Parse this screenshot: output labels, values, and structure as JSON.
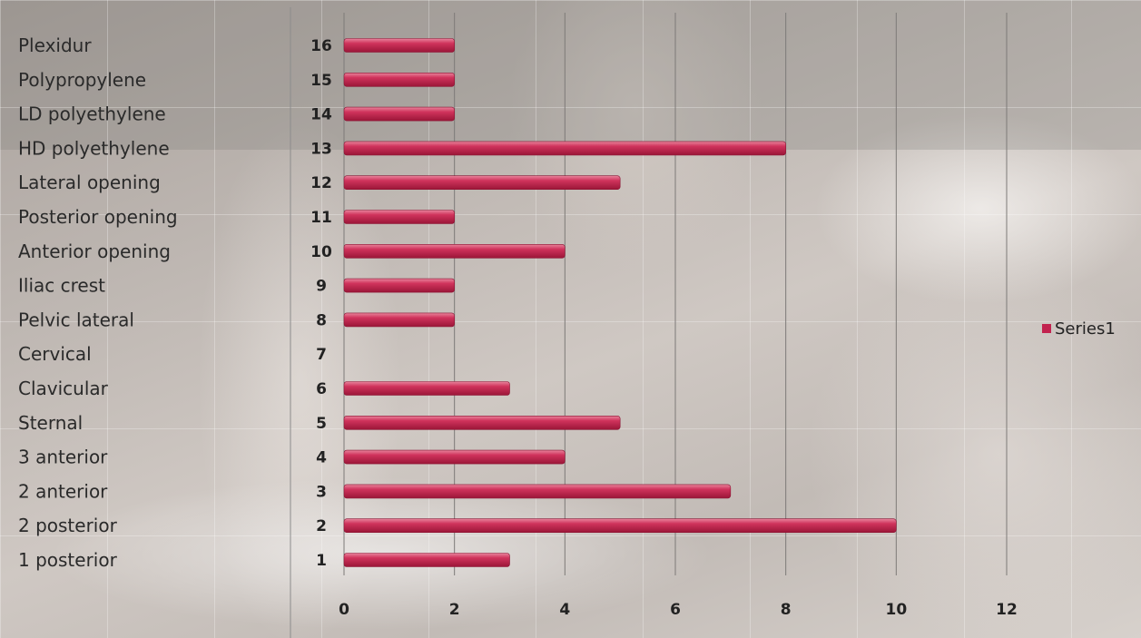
{
  "chart_data": {
    "type": "bar",
    "orientation": "horizontal",
    "categories": [
      "1",
      "2",
      "3",
      "4",
      "5",
      "6",
      "7",
      "8",
      "9",
      "10",
      "11",
      "12",
      "13",
      "14",
      "15",
      "16"
    ],
    "category_names": [
      "1 posterior",
      "2 posterior",
      "2 anterior",
      "3 anterior",
      "Sternal",
      "Clavicular",
      "Cervical",
      "Pelvic lateral",
      "Iliac crest",
      "Anterior opening",
      "Posterior opening",
      "Lateral opening",
      "HD polyethylene",
      "LD polyethylene",
      "Polypropylene",
      "Plexidur"
    ],
    "series": [
      {
        "name": "Series1",
        "values": [
          3,
          10,
          7,
          4,
          5,
          3,
          0,
          2,
          2,
          4,
          2,
          5,
          8,
          2,
          2,
          2
        ],
        "color": "#c2234f"
      }
    ],
    "xlim": [
      0,
      12
    ],
    "x_ticks": [
      "0",
      "2",
      "4",
      "6",
      "8",
      "10",
      "12"
    ],
    "grid": true,
    "legend": "right",
    "title": "",
    "xlabel": "",
    "ylabel": ""
  }
}
